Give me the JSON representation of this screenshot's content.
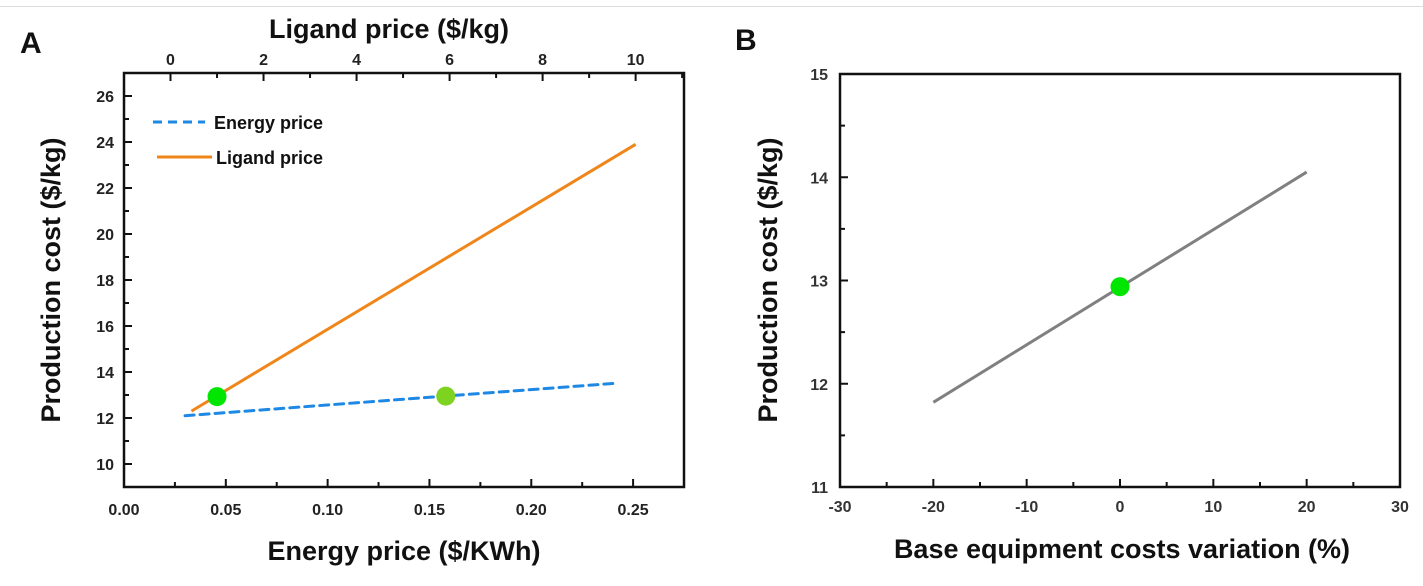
{
  "chart_data": [
    {
      "panel": "A",
      "type": "line",
      "xlabel": "Energy price ($/KWh)",
      "x2label": "Ligand price ($/kg)",
      "ylabel": "Production cost ($/kg)",
      "xlim": [
        0,
        0.275
      ],
      "x2lim": [
        -1,
        11.04
      ],
      "ylim": [
        9,
        27
      ],
      "xticks": [
        "0.00",
        "0.05",
        "0.10",
        "0.15",
        "0.20",
        "0.25"
      ],
      "xtick_values": [
        0,
        0.05,
        0.1,
        0.15,
        0.2,
        0.25
      ],
      "x2ticks": [
        "0",
        "2",
        "4",
        "6",
        "8",
        "10"
      ],
      "x2tick_values": [
        0,
        2,
        4,
        6,
        8,
        10
      ],
      "yticks": [
        "10",
        "12",
        "14",
        "16",
        "18",
        "20",
        "22",
        "24",
        "26"
      ],
      "ytick_values": [
        10,
        12,
        14,
        16,
        18,
        20,
        22,
        24,
        26
      ],
      "grid": false,
      "legend_position": "top-left",
      "series": [
        {
          "name": "Energy price",
          "axis": "bottom",
          "style": "dashed",
          "color": "#1e88e5",
          "x": [
            0.03,
            0.24
          ],
          "y": [
            12.1,
            13.5
          ],
          "marker": {
            "x": 0.158,
            "y": 12.95,
            "color": "#7ed321"
          }
        },
        {
          "name": "Ligand price",
          "axis": "top",
          "style": "solid",
          "color": "#f0861a",
          "x": [
            0.45,
            10
          ],
          "y": [
            12.3,
            23.9
          ],
          "marker": {
            "x": 1.0,
            "y": 12.93,
            "color": "#00e600"
          }
        }
      ]
    },
    {
      "panel": "B",
      "type": "line",
      "xlabel": "Base equipment costs variation (%)",
      "ylabel": "Production cost ($/kg)",
      "xlim": [
        -30,
        30
      ],
      "ylim": [
        11,
        15
      ],
      "xticks": [
        "-30",
        "-20",
        "-10",
        "0",
        "10",
        "20",
        "30"
      ],
      "xtick_values": [
        -30,
        -20,
        -10,
        0,
        10,
        20,
        30
      ],
      "yticks": [
        "11",
        "12",
        "13",
        "14",
        "15"
      ],
      "ytick_values": [
        11,
        12,
        13,
        14,
        15
      ],
      "grid": false,
      "series": [
        {
          "name": "Base equipment costs",
          "style": "solid",
          "color": "#808080",
          "x": [
            -20,
            20
          ],
          "y": [
            11.82,
            14.05
          ],
          "marker": {
            "x": 0,
            "y": 12.94,
            "color": "#00e600"
          }
        }
      ]
    }
  ]
}
